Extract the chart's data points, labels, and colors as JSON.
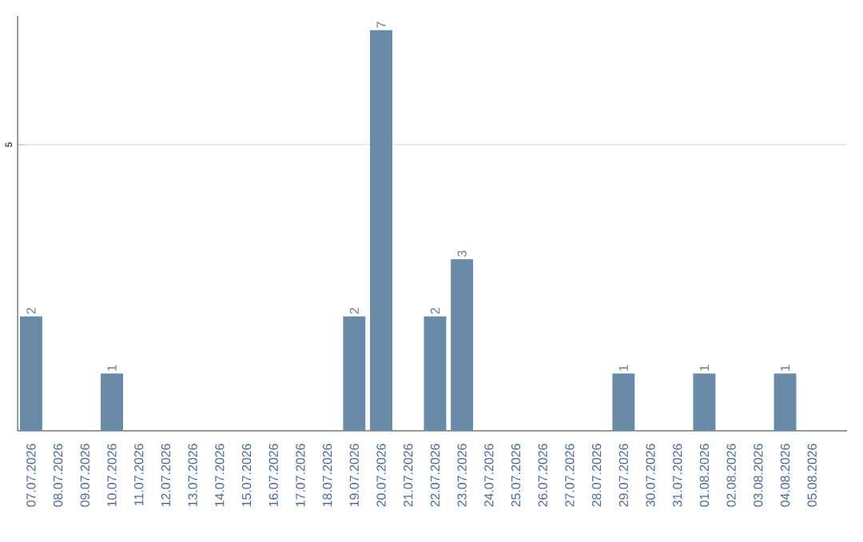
{
  "chart_data": {
    "type": "bar",
    "categories": [
      "07.07.2026",
      "08.07.2026",
      "09.07.2026",
      "10.07.2026",
      "11.07.2026",
      "12.07.2026",
      "13.07.2026",
      "14.07.2026",
      "15.07.2026",
      "16.07.2026",
      "17.07.2026",
      "18.07.2026",
      "19.07.2026",
      "20.07.2026",
      "21.07.2026",
      "22.07.2026",
      "23.07.2026",
      "24.07.2026",
      "25.07.2026",
      "26.07.2026",
      "27.07.2026",
      "28.07.2026",
      "29.07.2026",
      "30.07.2026",
      "31.07.2026",
      "01.08.2026",
      "02.08.2026",
      "03.08.2026",
      "04.08.2026",
      "05.08.2026"
    ],
    "values": [
      2,
      0,
      0,
      1,
      0,
      0,
      0,
      0,
      0,
      0,
      0,
      0,
      2,
      7,
      0,
      2,
      3,
      0,
      0,
      0,
      0,
      0,
      1,
      0,
      0,
      1,
      0,
      0,
      1,
      0
    ],
    "value_labels": [
      "2",
      null,
      null,
      "1",
      null,
      null,
      null,
      null,
      null,
      null,
      null,
      null,
      "2",
      "7",
      null,
      "2",
      "3",
      null,
      null,
      null,
      null,
      null,
      "1",
      null,
      null,
      "1",
      null,
      null,
      "1",
      null
    ],
    "color": "#6a8aaa",
    "ylim": [
      0,
      7.25
    ],
    "yticks": [
      5
    ],
    "grid": "y"
  }
}
